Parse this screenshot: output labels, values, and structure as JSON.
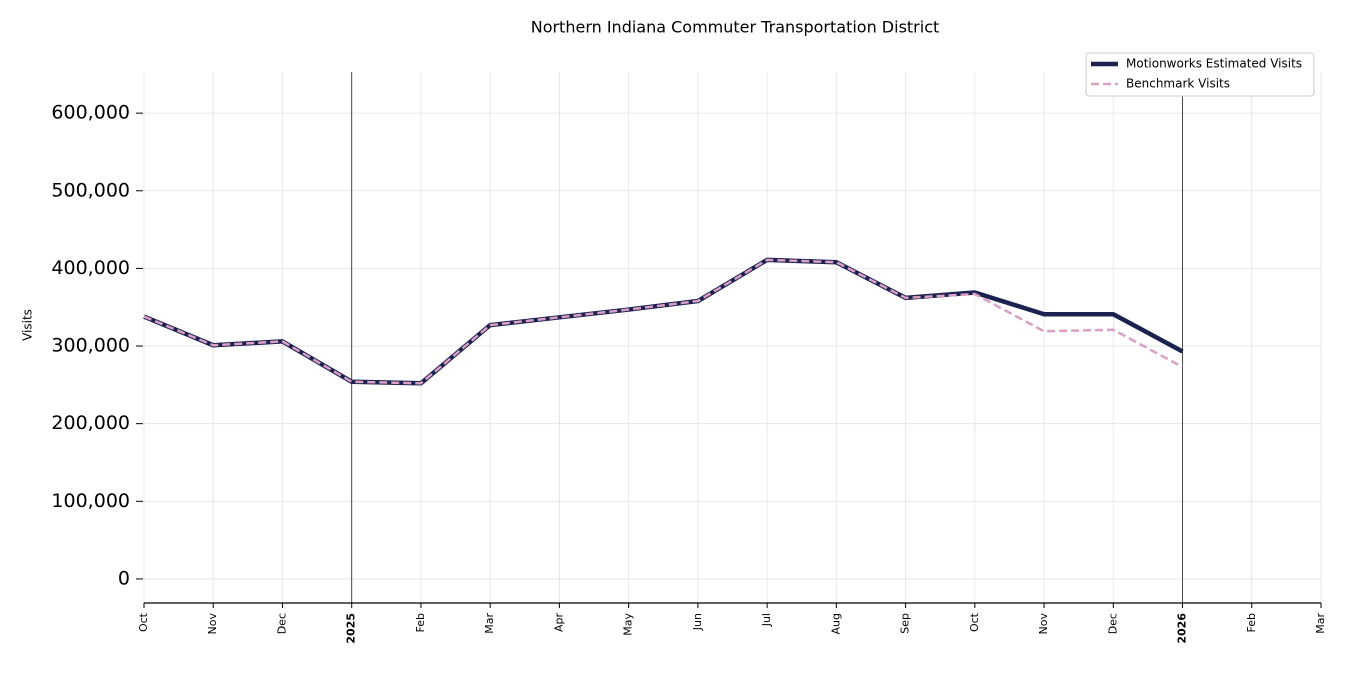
{
  "chart_data": {
    "type": "line",
    "title": "Northern Indiana Commuter Transportation District",
    "ylabel": "Visits",
    "categories": [
      "Oct",
      "Nov",
      "Dec",
      "2025",
      "Feb",
      "Mar",
      "Apr",
      "May",
      "Jun",
      "Jul",
      "Aug",
      "Sep",
      "Oct",
      "Nov",
      "Dec",
      "2026",
      "Feb",
      "Mar"
    ],
    "series": [
      {
        "name": "Motionworks Estimated Visits",
        "color": "#1c2150",
        "style": "solid",
        "values": [
          338000,
          301000,
          306000,
          254000,
          252000,
          327000,
          337000,
          347000,
          358000,
          411000,
          408000,
          362000,
          369000,
          341000,
          341000,
          293000,
          null,
          null
        ]
      },
      {
        "name": "Benchmark Visits",
        "color": "#d9a0c4",
        "style": "dashed",
        "values": [
          338000,
          301000,
          306000,
          254000,
          252000,
          327000,
          337000,
          347000,
          358000,
          411000,
          408000,
          362000,
          367000,
          319000,
          321000,
          273000,
          null,
          null
        ]
      }
    ],
    "ylim": [
      -31000,
      653000
    ],
    "yticks": [
      {
        "value": 0,
        "label": "0"
      },
      {
        "value": 100000,
        "label": "100,000"
      },
      {
        "value": 200000,
        "label": "200,000"
      },
      {
        "value": 300000,
        "label": "300,000"
      },
      {
        "value": 400000,
        "label": "400,000"
      },
      {
        "value": 500000,
        "label": "500,000"
      },
      {
        "value": 600000,
        "label": "600,000"
      }
    ],
    "grid": true,
    "legend": "upper right"
  }
}
